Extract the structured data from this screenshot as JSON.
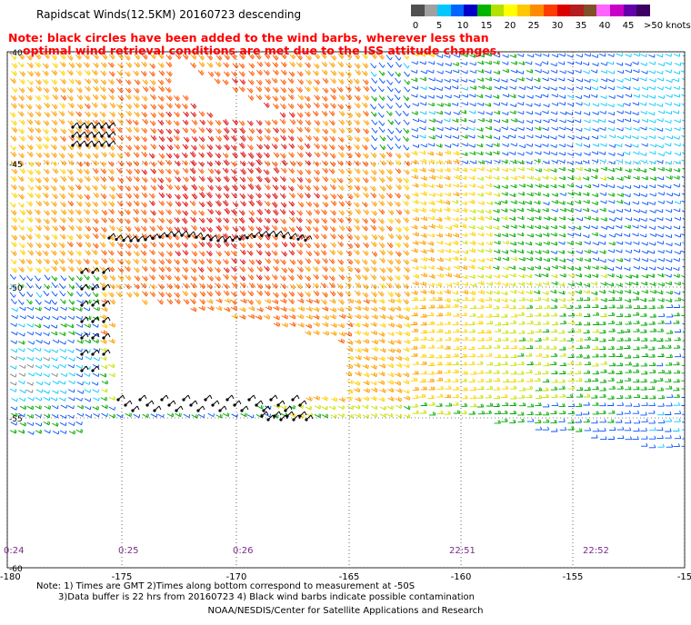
{
  "title": "Rapidscat Winds(12.5KM) 20160723 descending",
  "note_red": [
    "Note: black circles have been added to the wind barbs, wherever less than",
    "optimal wind retrieval conditions are met due to the ISS attitude changes."
  ],
  "scale": {
    "colors": [
      "#505050",
      "#a0a0a0",
      "#00c8ff",
      "#0064ff",
      "#0000c8",
      "#00b400",
      "#b4e100",
      "#ffff00",
      "#ffc800",
      "#ff8c00",
      "#ff3c00",
      "#dc0000",
      "#b41e1e",
      "#825028",
      "#ff64ff",
      "#c800c8",
      "#6400aa",
      "#3c0064"
    ],
    "labels": [
      "0",
      "5",
      "10",
      "15",
      "20",
      "25",
      "30",
      "35",
      "40",
      "45",
      ">50 knots"
    ]
  },
  "axes": {
    "lon_labels": [
      "-180",
      "-175",
      "-170",
      "-165",
      "-160",
      "-155",
      "-15"
    ],
    "lat_labels": [
      "-40",
      "-45",
      "-50",
      "-55",
      "-60"
    ]
  },
  "pass_times": [
    "0:24",
    "0:25",
    "0:26",
    "22:51",
    "22:52"
  ],
  "footnote": [
    "Note: 1) Times are GMT 2)Times along bottom correspond to measurement at -50S",
    "3)Data buffer is 22 hrs from 20160723 4) Black wind barbs indicate possible contamination"
  ],
  "credit": "NOAA/NESDIS/Center for Satellite Applications and Research"
}
